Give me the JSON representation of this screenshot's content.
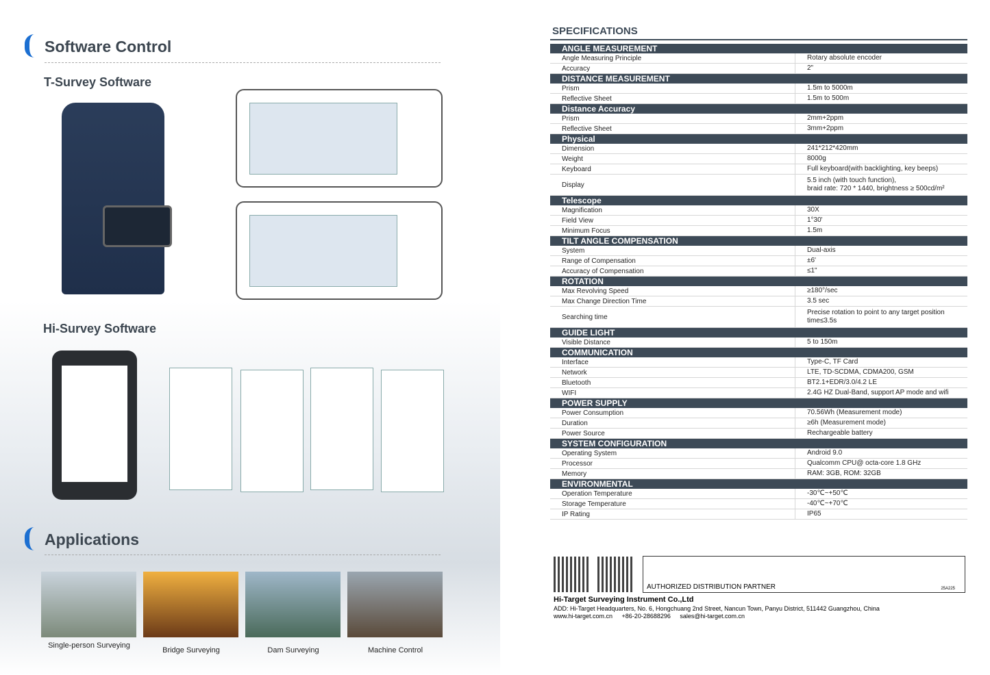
{
  "left": {
    "section_title": "Software Control",
    "tsurvey": "T-Survey Software",
    "hisurvey": "Hi-Survey Software",
    "applications_title": "Applications",
    "applications": [
      "Single-person Surveying",
      "Bridge Surveying",
      "Dam Surveying",
      "Machine Control"
    ]
  },
  "specs": {
    "title": "SPECIFICATIONS",
    "groups": [
      {
        "title": "ANGLE MEASUREMENT",
        "rows": [
          [
            "Angle Measuring Principle",
            "Rotary absolute encoder"
          ],
          [
            "Accuracy",
            "2\""
          ]
        ]
      },
      {
        "title": "DISTANCE MEASUREMENT",
        "rows": [
          [
            "Prism",
            "1.5m to 5000m"
          ],
          [
            "Reflective Sheet",
            "1.5m to 500m"
          ]
        ]
      },
      {
        "title": "Distance Accuracy",
        "rows": [
          [
            "Prism",
            "2mm+2ppm"
          ],
          [
            "Reflective Sheet",
            "3mm+2ppm"
          ]
        ]
      },
      {
        "title": "Physical",
        "rows": [
          [
            "Dimension",
            "241*212*420mm"
          ],
          [
            "Weight",
            "8000g"
          ],
          [
            "Keyboard",
            "Full keyboard(with backlighting, key beeps)"
          ],
          [
            "Display",
            "5.5 inch (with touch function),\nbraid rate: 720 * 1440, brightness ≥ 500cd/m²"
          ]
        ]
      },
      {
        "title": "Telescope",
        "rows": [
          [
            "Magnification",
            "30X"
          ],
          [
            "Field View",
            "1°30'"
          ],
          [
            "Minimum Focus",
            "1.5m"
          ]
        ]
      },
      {
        "title": "TILT ANGLE COMPENSATION",
        "rows": [
          [
            "System",
            "Dual-axis"
          ],
          [
            "Range of Compensation",
            "±6'"
          ],
          [
            "Accuracy of Compensation",
            "≤1\""
          ]
        ]
      },
      {
        "title": "ROTATION",
        "rows": [
          [
            "Max Revolving Speed",
            "≥180°/sec"
          ],
          [
            "Max Change Direction Time",
            "3.5 sec"
          ],
          [
            "Searching time",
            "Precise rotation to point to any target position\ntime≤3.5s"
          ]
        ]
      },
      {
        "title": "GUIDE LIGHT",
        "rows": [
          [
            "Visible Distance",
            "5 to 150m"
          ]
        ]
      },
      {
        "title": "COMMUNICATION",
        "rows": [
          [
            "Interface",
            "Type-C, TF Card"
          ],
          [
            "Network",
            "LTE, TD-SCDMA, CDMA200, GSM"
          ],
          [
            "Bluetooth",
            "BT2.1+EDR/3.0/4.2 LE"
          ],
          [
            "WIFI",
            "2.4G HZ Dual-Band, support AP mode and wifi"
          ]
        ]
      },
      {
        "title": "POWER SUPPLY",
        "rows": [
          [
            "Power Consumption",
            "70.56Wh (Measurement mode)"
          ],
          [
            "Duration",
            "≥6h (Measurement mode)"
          ],
          [
            "Power Source",
            "Rechargeable battery"
          ]
        ]
      },
      {
        "title": "SYSTEM CONFIGURATION",
        "rows": [
          [
            "Operating System",
            "Android 9.0"
          ],
          [
            "Processor",
            "Qualcomm CPU@ octa-core 1.8 GHz"
          ],
          [
            "Memory",
            "RAM: 3GB, ROM: 32GB"
          ]
        ]
      },
      {
        "title": "ENVIRONMENTAL",
        "rows": [
          [
            "Operation Temperature",
            "-30℃~+50℃"
          ],
          [
            "Storage Temperature",
            "-40℃~+70℃"
          ],
          [
            "IP Rating",
            "IP65"
          ]
        ]
      }
    ]
  },
  "footer": {
    "partner": "AUTHORIZED DISTRIBUTION PARTNER",
    "code": "25A225",
    "company": "Hi-Target Surveying Instrument Co.,Ltd",
    "address": "ADD: Hi-Target Headquarters, No. 6, Hongchuang 2nd Street, Nancun Town, Panyu District, 511442 Guangzhou, China",
    "web": "www.hi-target.com.cn",
    "phone": "+86-20-28688296",
    "email": "sales@hi-target.com.cn"
  }
}
